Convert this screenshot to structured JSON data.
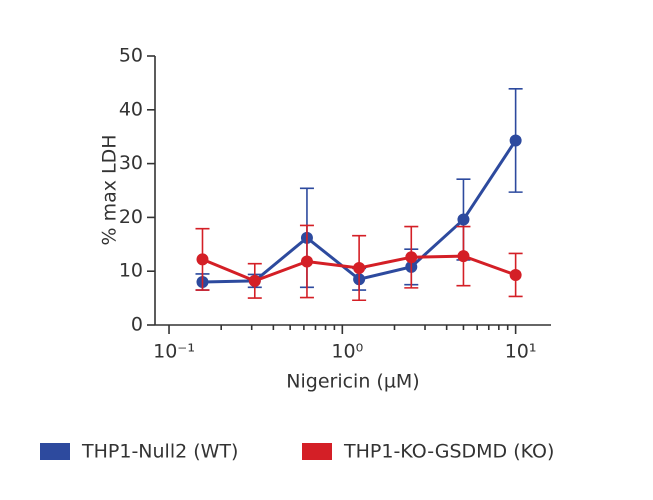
{
  "chart_data": {
    "type": "line",
    "x_label": "Nigericin (µM)",
    "y_label": "% max LDH",
    "x": [
      0.156,
      0.3125,
      0.625,
      1.25,
      2.5,
      5,
      10
    ],
    "series": [
      {
        "name": "THP1-Null2 (WT)",
        "color": "#2d4a9e",
        "values": [
          8,
          8.2,
          16.2,
          8.5,
          10.8,
          19.6,
          34.3
        ],
        "errors": [
          1.5,
          1.2,
          9.2,
          2,
          3.3,
          7.5,
          9.6
        ]
      },
      {
        "name": "THP1-KO-GSDMD (KO)",
        "color": "#d41f26",
        "values": [
          12.2,
          8.2,
          11.8,
          10.6,
          12.6,
          12.8,
          9.3
        ],
        "errors": [
          5.7,
          3.2,
          6.7,
          6,
          5.7,
          5.5,
          4
        ]
      }
    ],
    "xlog": true,
    "xlim": [
      0.083,
      16
    ],
    "xticks": [
      {
        "value": 0.1,
        "label": "10⁻¹"
      },
      {
        "value": 1,
        "label": "10⁰"
      },
      {
        "value": 10,
        "label": "10¹"
      }
    ],
    "xminorticks": [
      0.2,
      0.3,
      0.4,
      0.5,
      0.6,
      0.7,
      0.8,
      0.9,
      2,
      3,
      4,
      5,
      6,
      7,
      8,
      9
    ],
    "ylim": [
      0,
      50
    ],
    "yticks": [
      0,
      10,
      20,
      30,
      40,
      50
    ],
    "grid": false
  }
}
